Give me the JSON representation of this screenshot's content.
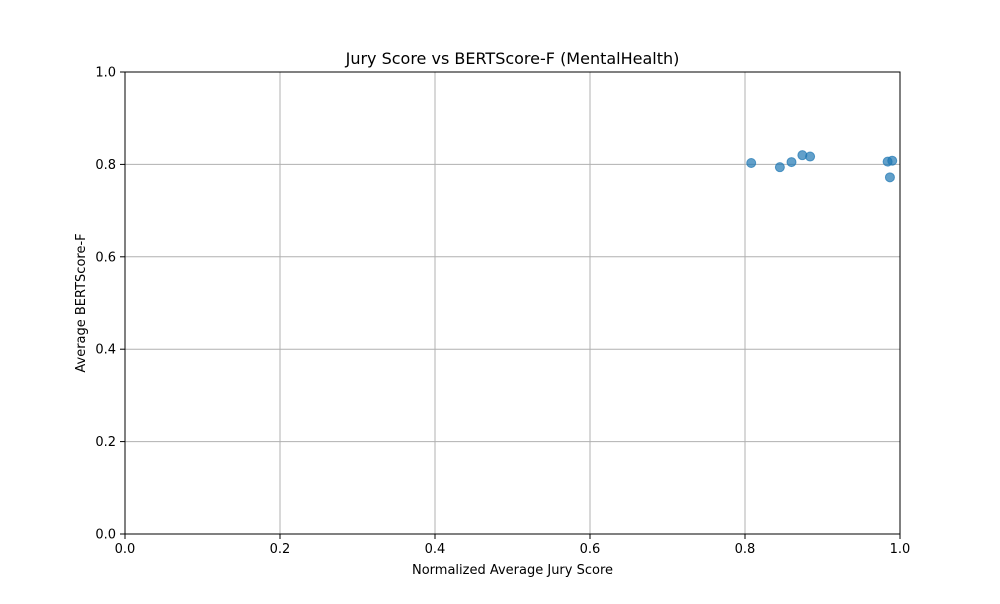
{
  "chart_data": {
    "type": "scatter",
    "title": "Jury Score vs BERTScore-F (MentalHealth)",
    "xlabel": "Normalized Average Jury Score",
    "ylabel": "Average BERTScore-F",
    "xlim": [
      0.0,
      1.0
    ],
    "ylim": [
      0.0,
      1.0
    ],
    "x_ticks": [
      "0.0",
      "0.2",
      "0.4",
      "0.6",
      "0.8",
      "1.0"
    ],
    "y_ticks": [
      "0.0",
      "0.2",
      "0.4",
      "0.6",
      "0.8",
      "1.0"
    ],
    "grid": true,
    "point_color": "#1f77b4",
    "points": [
      {
        "x": 0.808,
        "y": 0.803
      },
      {
        "x": 0.845,
        "y": 0.794
      },
      {
        "x": 0.86,
        "y": 0.805
      },
      {
        "x": 0.874,
        "y": 0.82
      },
      {
        "x": 0.884,
        "y": 0.817
      },
      {
        "x": 0.984,
        "y": 0.806
      },
      {
        "x": 0.99,
        "y": 0.808
      },
      {
        "x": 0.987,
        "y": 0.772
      }
    ]
  }
}
